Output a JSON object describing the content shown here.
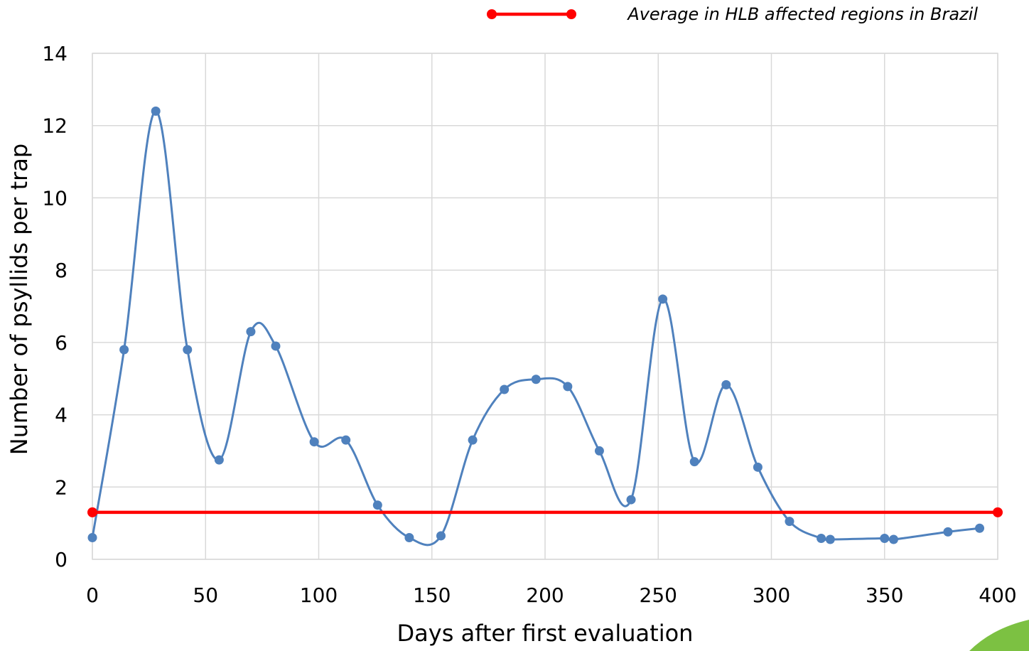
{
  "chart_data": {
    "type": "line",
    "title": "",
    "xlabel": "Days after first evaluation",
    "ylabel": "Number of psyllids per trap",
    "xlim": [
      0,
      400
    ],
    "ylim": [
      0,
      14
    ],
    "xticks": [
      0,
      50,
      100,
      150,
      200,
      250,
      300,
      350,
      400
    ],
    "yticks": [
      0,
      2,
      4,
      6,
      8,
      10,
      12,
      14
    ],
    "grid": true,
    "legend_position": "top-right",
    "series": [
      {
        "name": "",
        "color": "#4f81bd",
        "smooth": true,
        "x": [
          0,
          14,
          28,
          42,
          56,
          70,
          81,
          98,
          112,
          126,
          140,
          154,
          168,
          182,
          196,
          210,
          224,
          238,
          252,
          266,
          280,
          294,
          308,
          322,
          326,
          350,
          354,
          378,
          392
        ],
        "y": [
          0.6,
          5.8,
          12.4,
          5.8,
          2.75,
          6.3,
          5.9,
          3.25,
          3.3,
          1.5,
          0.6,
          0.65,
          3.3,
          4.7,
          4.98,
          4.78,
          3.0,
          1.65,
          7.2,
          2.7,
          4.83,
          2.55,
          1.05,
          0.58,
          0.55,
          0.58,
          0.55,
          0.76,
          0.86
        ]
      },
      {
        "name": "Average in HLB affected regions in Brazil",
        "color": "#ff0000",
        "smooth": false,
        "x": [
          0,
          400
        ],
        "y": [
          1.3,
          1.3
        ]
      }
    ]
  }
}
